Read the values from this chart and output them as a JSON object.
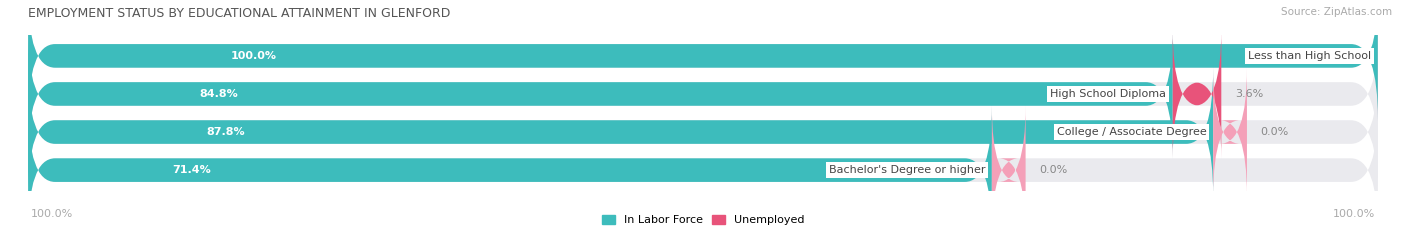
{
  "title": "EMPLOYMENT STATUS BY EDUCATIONAL ATTAINMENT IN GLENFORD",
  "source": "Source: ZipAtlas.com",
  "categories": [
    "Less than High School",
    "High School Diploma",
    "College / Associate Degree",
    "Bachelor's Degree or higher"
  ],
  "in_labor_force": [
    100.0,
    84.8,
    87.8,
    71.4
  ],
  "unemployed": [
    0.0,
    3.6,
    0.0,
    0.0
  ],
  "labor_force_color": "#3DBCBC",
  "unemployed_color_strong": "#E8537A",
  "unemployed_color_light": "#F4A0B8",
  "bar_bg_color": "#EAEAEE",
  "bar_height": 0.62,
  "legend_label_labor": "In Labor Force",
  "legend_label_unemployed": "Unemployed",
  "left_axis_label": "100.0%",
  "right_axis_label": "100.0%",
  "title_fontsize": 9,
  "label_fontsize": 8,
  "cat_fontsize": 8,
  "tick_fontsize": 8,
  "source_fontsize": 7.5,
  "value_color_inside": "white",
  "value_color_outside": "#888888",
  "cat_label_color": "#444444",
  "title_color": "#555555",
  "unemp_value_color": "#888888"
}
